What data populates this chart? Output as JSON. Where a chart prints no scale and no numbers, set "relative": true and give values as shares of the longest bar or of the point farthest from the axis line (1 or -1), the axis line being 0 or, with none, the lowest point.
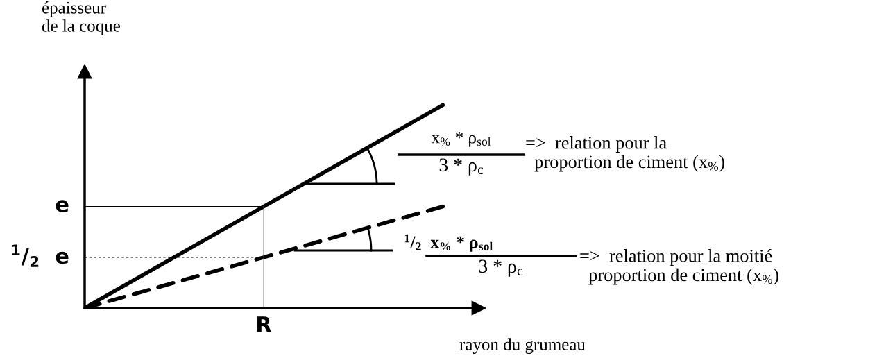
{
  "chart_data": {
    "type": "line",
    "relative": true,
    "xlabel": "rayon du grumeau",
    "categories": [
      null,
      null,
      null
    ],
    "series": [
      {
        "color": "#000000",
        "line_style": "solid",
        "values": [
          0,
          0.5,
          1
        ]
      },
      {
        "color": "#000000",
        "line_style": "dashed",
        "values": [
          0,
          0.25,
          0.5
        ]
      }
    ],
    "ref_lines": [
      {
        "axis": "y",
        "value": 0.5,
        "line_style": "solid"
      },
      {
        "axis": "y",
        "value": 0.25,
        "line_style": "dotted"
      }
    ],
    "annotations": [
      "épaisseur\nde la coque",
      "x$_{%}$ * ρ$_{sol}$",
      "3 * ρ$_{c}$",
      "=>  relation pour la\n  proportion de ciment (x$_{%}$)",
      "$^{1}$/$_{2}$  x$_{%}$ * ρ$_{sol}$",
      "3 * ρ$_{c}$",
      "=>  relation pour la moitié\n  proportion de ciment (x$_{%}$)",
      "e",
      "$^{1}$/$_{2}$  e",
      "R"
    ],
    "legend": false
  }
}
